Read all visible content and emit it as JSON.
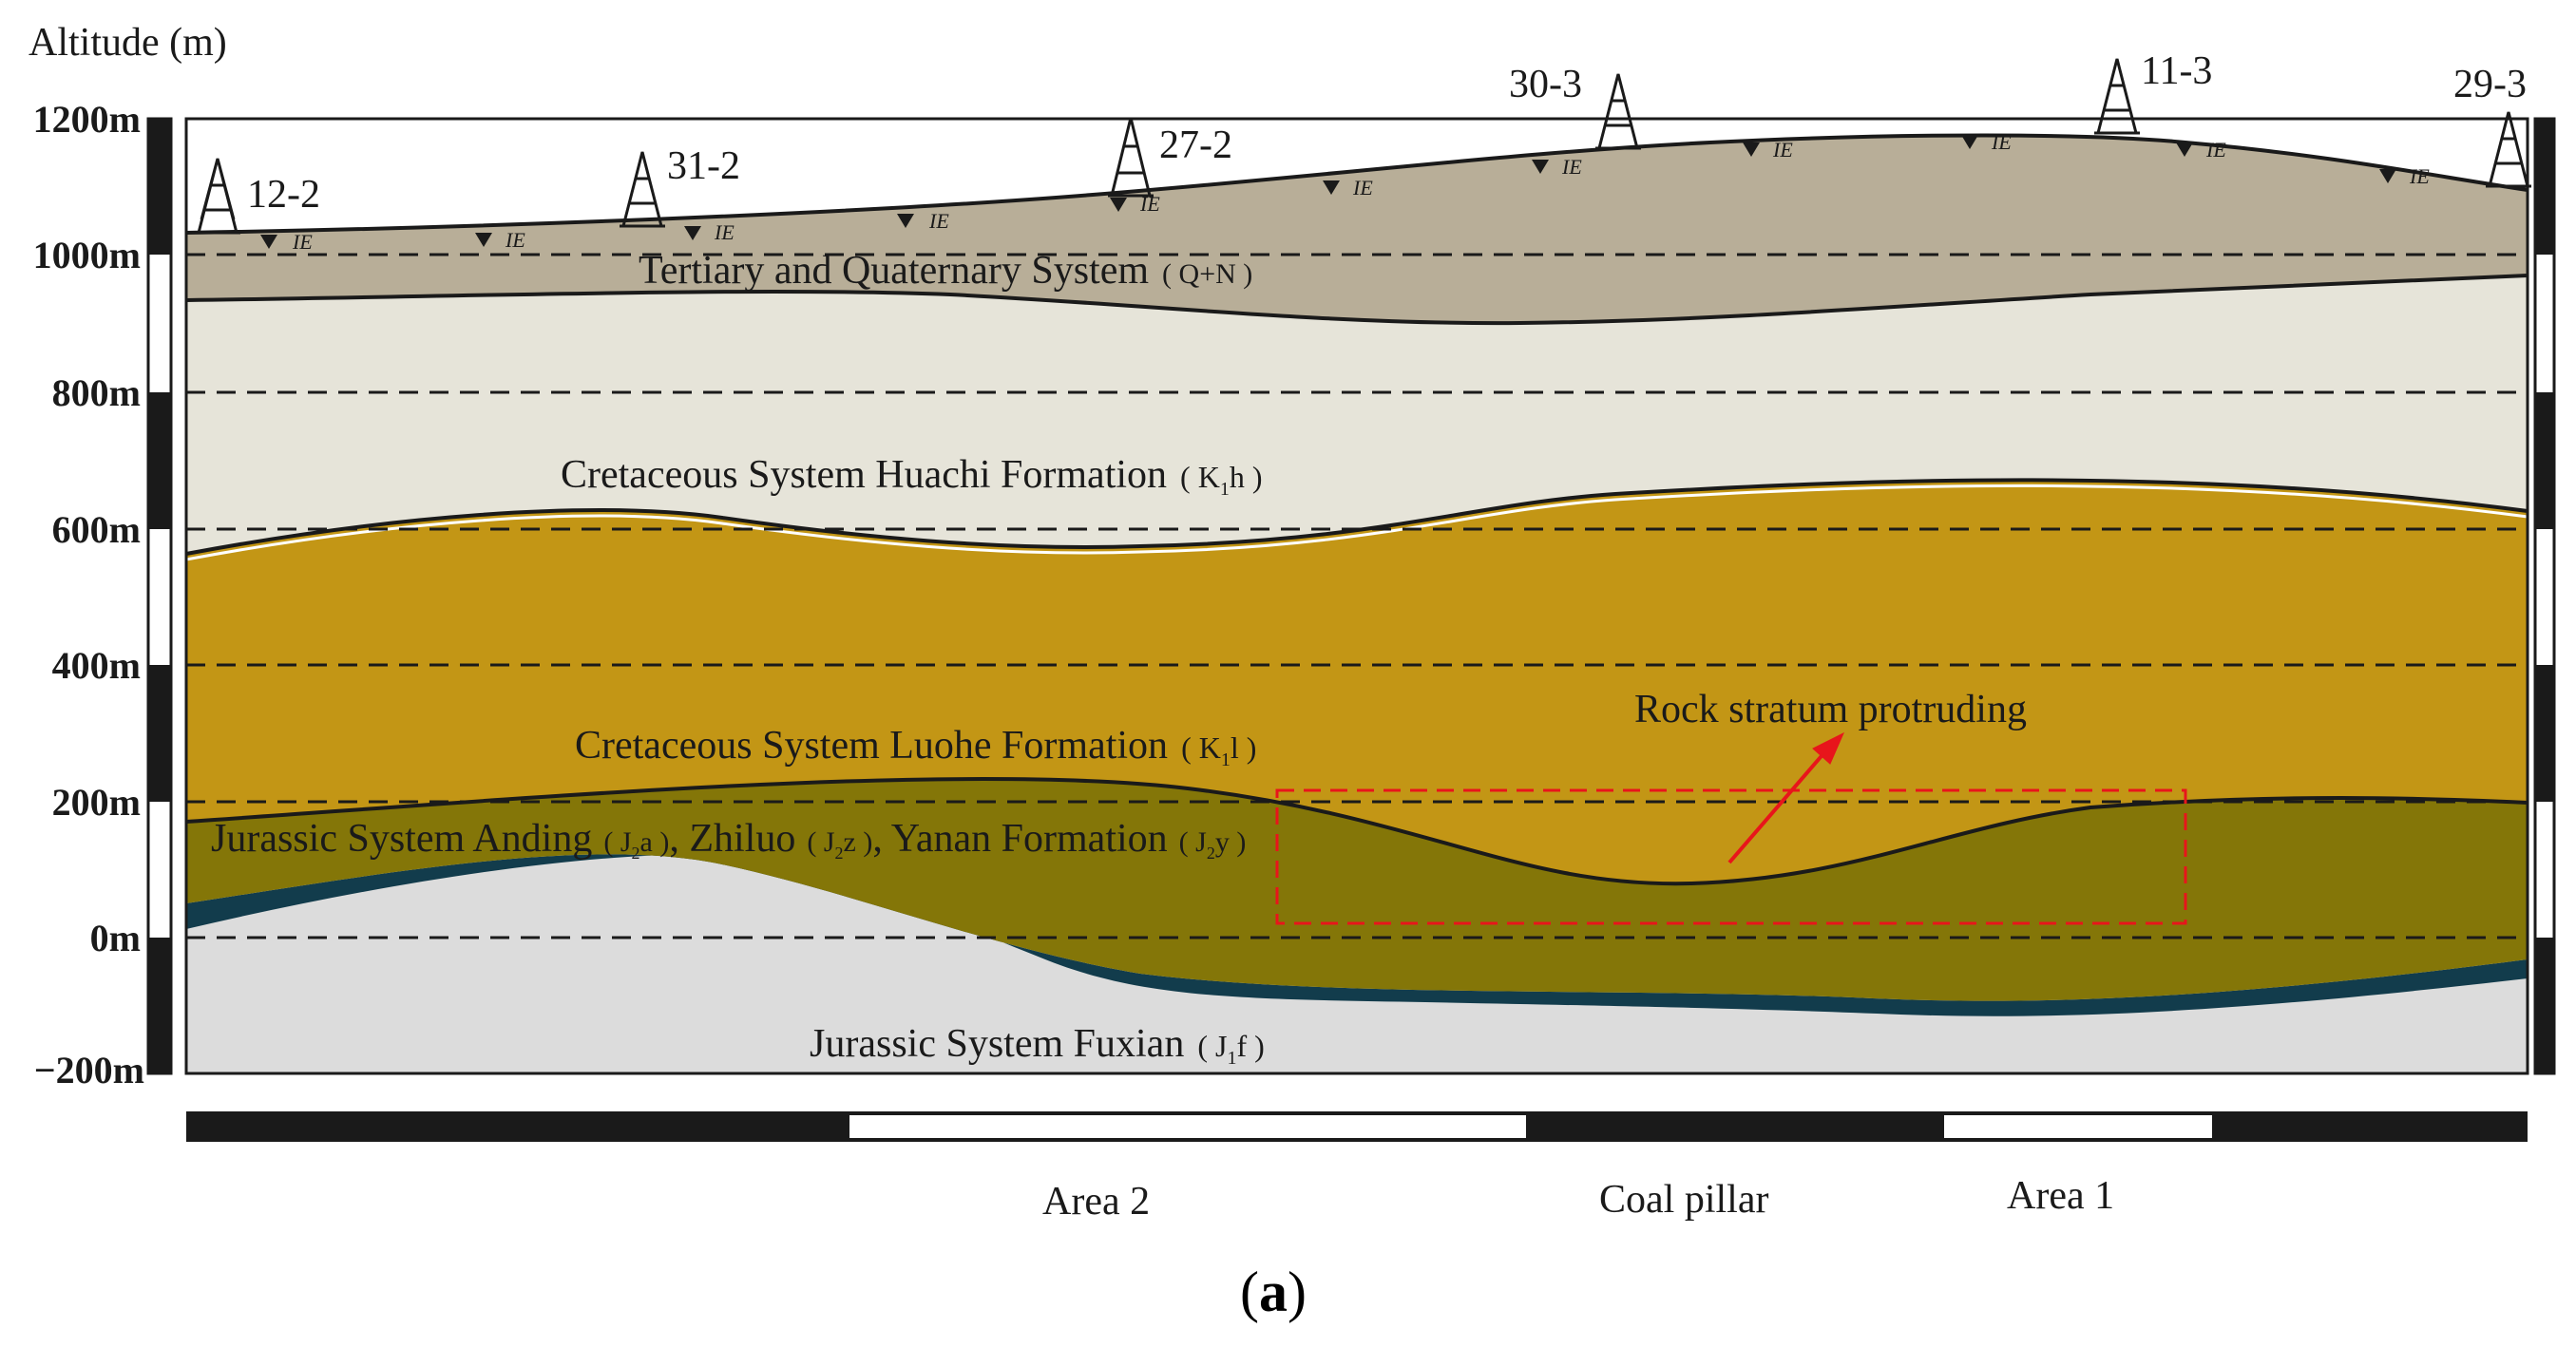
{
  "figure": {
    "panel_label": "(a)",
    "panel_letter": "a",
    "y_axis_title": "Altitude (m)",
    "y_ticks": [
      "1200m",
      "1000m",
      "800m",
      "600m",
      "400m",
      "200m",
      "0m",
      "−200m"
    ],
    "boreholes": [
      "12-2",
      "31-2",
      "27-2",
      "30-3",
      "11-3",
      "29-3"
    ],
    "water_table_symbol": "ΙΕ",
    "strata": {
      "quaternary": {
        "name": "Tertiary and Quaternary System",
        "code": "( Q+N )",
        "color": "#b8ae98"
      },
      "huachi": {
        "name": "Cretaceous System Huachi Formation",
        "code": "( K",
        "sub": "1",
        "code_end": "h )",
        "color": "#e6e4d9"
      },
      "luohe": {
        "name": "Cretaceous System Luohe Formation",
        "code": "( K",
        "sub": "1",
        "code_end": "l )",
        "color": "#c39615"
      },
      "jurassic_upper": {
        "name": "Jurassic System Anding",
        "anding_code": "( J",
        "anding_sub": "2",
        "anding_end": "a )",
        "zhiluo": ", Zhiluo",
        "zhiluo_code": "( J",
        "zhiluo_sub": "2",
        "zhiluo_end": "z )",
        "yanan": ", Yanan Formation",
        "yanan_code": "( J",
        "yanan_sub": "2",
        "yanan_end": "y )",
        "color": "#847608"
      },
      "coal_seam": {
        "color": "#123c4c"
      },
      "fuxian": {
        "name": "Jurassic System Fuxian",
        "code": "( J",
        "sub": "1",
        "code_end": "f )",
        "color": "#dcdcdc"
      }
    },
    "annotation": {
      "text": "Rock stratum protruding",
      "color": "#e8151b"
    },
    "areas": [
      "Area 2",
      "Coal pillar",
      "Area 1"
    ]
  }
}
